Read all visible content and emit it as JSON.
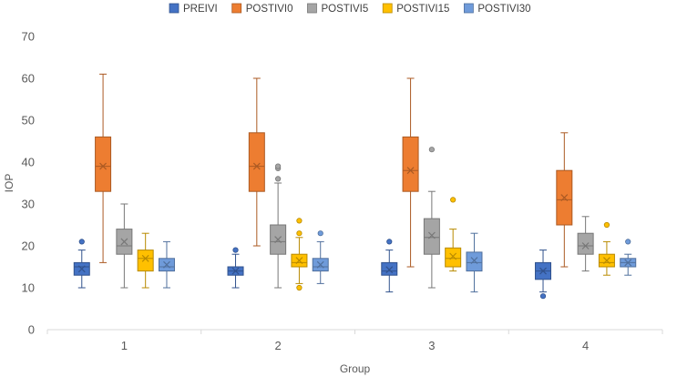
{
  "chart_data": {
    "type": "boxplot",
    "title": "",
    "xlabel": "Group",
    "ylabel": "IOP",
    "ylim": [
      0,
      70
    ],
    "yticks": [
      0,
      10,
      20,
      30,
      40,
      50,
      60,
      70
    ],
    "gridlines": false,
    "legend_position": "top",
    "categories": [
      "1",
      "2",
      "3",
      "4"
    ],
    "series": [
      {
        "name": "PREIVI",
        "color": "#4472C4",
        "boxes": [
          {
            "min": 10,
            "q1": 13,
            "median": 15,
            "q3": 16,
            "max": 19,
            "mean": 14.5,
            "outliers": [
              21
            ]
          },
          {
            "min": 10,
            "q1": 13,
            "median": 14,
            "q3": 15,
            "max": 18,
            "mean": 14,
            "outliers": [
              19
            ]
          },
          {
            "min": 9,
            "q1": 13,
            "median": 14,
            "q3": 16,
            "max": 19,
            "mean": 14.3,
            "outliers": [
              21
            ]
          },
          {
            "min": 9,
            "q1": 12,
            "median": 14,
            "q3": 16,
            "max": 19,
            "mean": 14,
            "outliers": [
              8
            ]
          }
        ]
      },
      {
        "name": "POSTIVI0",
        "color": "#ED7D31",
        "boxes": [
          {
            "min": 16,
            "q1": 33,
            "median": 39,
            "q3": 46,
            "max": 61,
            "mean": 39,
            "outliers": []
          },
          {
            "min": 20,
            "q1": 33,
            "median": 39,
            "q3": 47,
            "max": 60,
            "mean": 39,
            "outliers": []
          },
          {
            "min": 15,
            "q1": 33,
            "median": 38,
            "q3": 46,
            "max": 60,
            "mean": 38,
            "outliers": []
          },
          {
            "min": 15,
            "q1": 25,
            "median": 31,
            "q3": 38,
            "max": 47,
            "mean": 31.5,
            "outliers": []
          }
        ]
      },
      {
        "name": "POSTIVI5",
        "color": "#A5A5A5",
        "boxes": [
          {
            "min": 10,
            "q1": 18,
            "median": 20,
            "q3": 24,
            "max": 30,
            "mean": 21,
            "outliers": []
          },
          {
            "min": 10,
            "q1": 18,
            "median": 21,
            "q3": 25,
            "max": 35,
            "mean": 21.5,
            "outliers": [
              36,
              38.5,
              39
            ]
          },
          {
            "min": 10,
            "q1": 18,
            "median": 22,
            "q3": 26.5,
            "max": 33,
            "mean": 22.5,
            "outliers": [
              43
            ]
          },
          {
            "min": 14,
            "q1": 18,
            "median": 20,
            "q3": 23,
            "max": 27,
            "mean": 20,
            "outliers": []
          }
        ]
      },
      {
        "name": "POSTIVI15",
        "color": "#FFC000",
        "boxes": [
          {
            "min": 10,
            "q1": 14,
            "median": 17,
            "q3": 19,
            "max": 23,
            "mean": 17,
            "outliers": []
          },
          {
            "min": 11,
            "q1": 15,
            "median": 16,
            "q3": 18,
            "max": 22,
            "mean": 16.5,
            "outliers": [
              10,
              23,
              26
            ]
          },
          {
            "min": 14,
            "q1": 15,
            "median": 17,
            "q3": 19.5,
            "max": 24,
            "mean": 17.5,
            "outliers": [
              31
            ]
          },
          {
            "min": 13,
            "q1": 15,
            "median": 16,
            "q3": 18,
            "max": 21,
            "mean": 16.5,
            "outliers": [
              25
            ]
          }
        ]
      },
      {
        "name": "POSTIVI30",
        "color": "#6F9BDA",
        "boxes": [
          {
            "min": 10,
            "q1": 14,
            "median": 15,
            "q3": 17,
            "max": 21,
            "mean": 15.5,
            "outliers": []
          },
          {
            "min": 11,
            "q1": 14,
            "median": 15,
            "q3": 17,
            "max": 21,
            "mean": 15.5,
            "outliers": [
              23
            ]
          },
          {
            "min": 9,
            "q1": 14,
            "median": 16,
            "q3": 18.5,
            "max": 23,
            "mean": 16.5,
            "outliers": []
          },
          {
            "min": 13,
            "q1": 15,
            "median": 16,
            "q3": 17,
            "max": 18,
            "mean": 16,
            "outliers": [
              21
            ]
          }
        ]
      }
    ]
  }
}
